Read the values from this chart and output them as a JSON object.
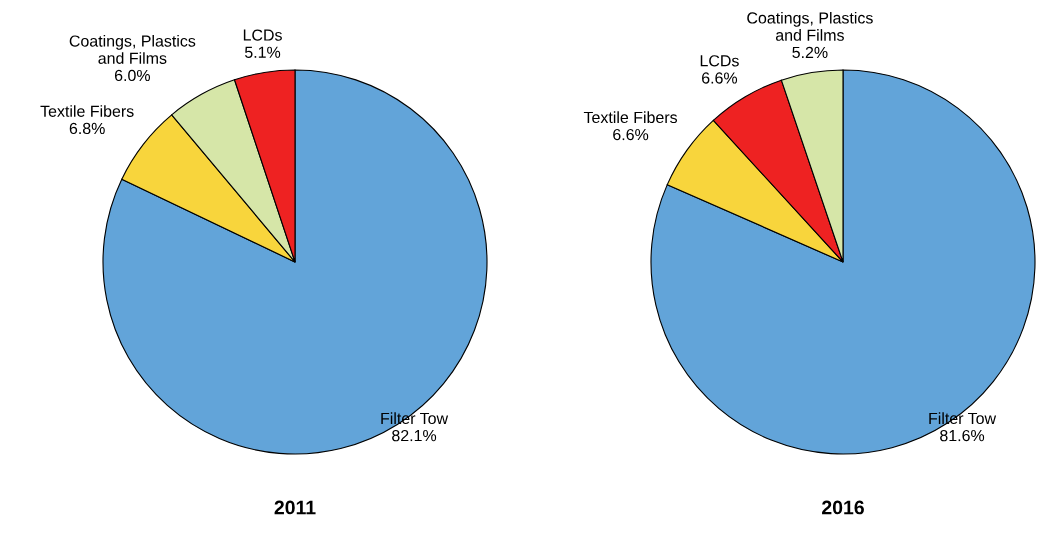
{
  "chart_data": [
    {
      "type": "pie",
      "title": "2011",
      "categories": [
        "Filter Tow",
        "Textile Fibers",
        "Coatings, Plastics\nand Films",
        "LCDs"
      ],
      "values": [
        82.1,
        6.8,
        6.0,
        5.1
      ],
      "value_labels": [
        "82.1%",
        "6.8%",
        "6.0%",
        "5.1%"
      ],
      "colors": [
        "#62a4d9",
        "#f8d53c",
        "#d6e6a8",
        "#ee2222"
      ]
    },
    {
      "type": "pie",
      "title": "2016",
      "categories": [
        "Filter Tow",
        "Textile Fibers",
        "LCDs",
        "Coatings, Plastics\nand Films"
      ],
      "values": [
        81.6,
        6.6,
        6.6,
        5.2
      ],
      "value_labels": [
        "81.6%",
        "6.6%",
        "6.6%",
        "5.2%"
      ],
      "colors": [
        "#62a4d9",
        "#f8d53c",
        "#ee2222",
        "#d6e6a8"
      ]
    }
  ]
}
